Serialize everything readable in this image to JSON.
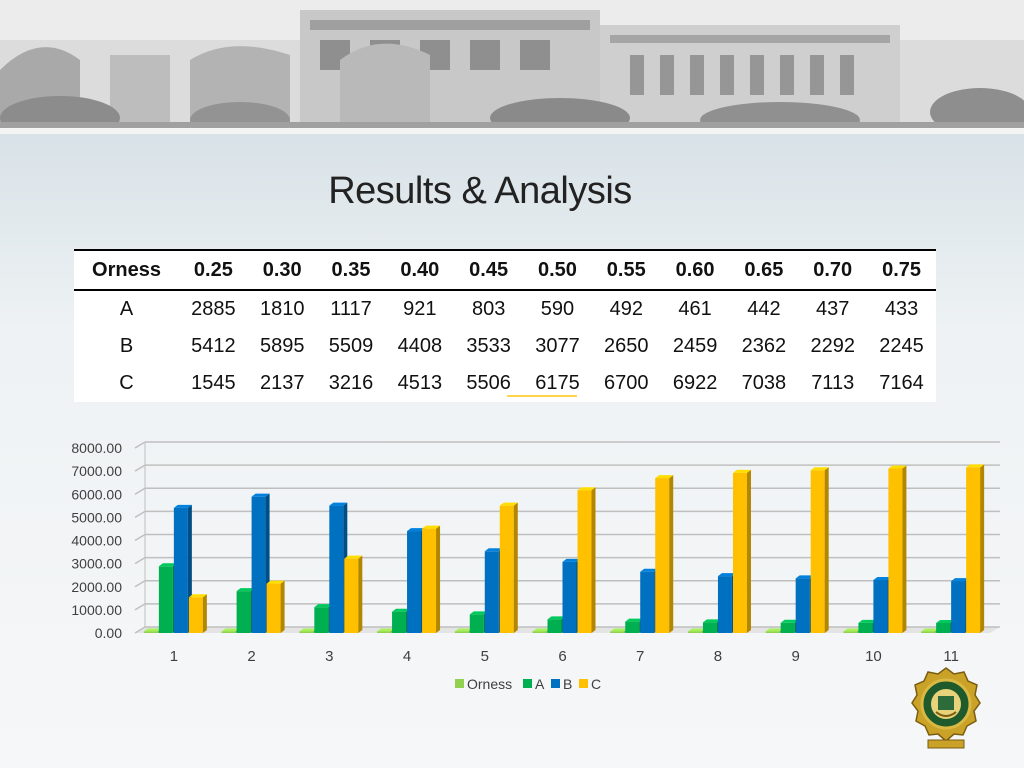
{
  "slide": {
    "title": "Results & Analysis"
  },
  "table": {
    "header": [
      "Orness",
      "0.25",
      "0.30",
      "0.35",
      "0.40",
      "0.45",
      "0.50",
      "0.55",
      "0.60",
      "0.65",
      "0.70",
      "0.75"
    ],
    "rows": [
      [
        "A",
        "2885",
        "1810",
        "1117",
        "921",
        "803",
        "590",
        "492",
        "461",
        "442",
        "437",
        "433"
      ],
      [
        "B",
        "5412",
        "5895",
        "5509",
        "4408",
        "3533",
        "3077",
        "2650",
        "2459",
        "2362",
        "2292",
        "2245"
      ],
      [
        "C",
        "1545",
        "2137",
        "3216",
        "4513",
        "5506",
        "6175",
        "6700",
        "6922",
        "7038",
        "7113",
        "7164"
      ]
    ]
  },
  "chart_data": {
    "type": "bar",
    "categories": [
      "1",
      "2",
      "3",
      "4",
      "5",
      "6",
      "7",
      "8",
      "9",
      "10",
      "11"
    ],
    "series": [
      {
        "name": "Orness",
        "values": [
          0.25,
          0.3,
          0.35,
          0.4,
          0.45,
          0.5,
          0.55,
          0.6,
          0.65,
          0.7,
          0.75
        ],
        "color": "#92d050"
      },
      {
        "name": "A",
        "values": [
          2885,
          1810,
          1117,
          921,
          803,
          590,
          492,
          461,
          442,
          437,
          433
        ],
        "color": "#00b050"
      },
      {
        "name": "B",
        "values": [
          5412,
          5895,
          5509,
          4408,
          3533,
          3077,
          2650,
          2459,
          2362,
          2292,
          2245
        ],
        "color": "#0070c0"
      },
      {
        "name": "C",
        "values": [
          1545,
          2137,
          3216,
          4513,
          5506,
          6175,
          6700,
          6922,
          7038,
          7113,
          7164
        ],
        "color": "#ffc000"
      }
    ],
    "yticks": [
      "0.00",
      "1000.00",
      "2000.00",
      "3000.00",
      "4000.00",
      "5000.00",
      "6000.00",
      "7000.00",
      "8000.00"
    ],
    "ylim": [
      0,
      8000
    ],
    "grid": true,
    "legend": "bottom"
  }
}
